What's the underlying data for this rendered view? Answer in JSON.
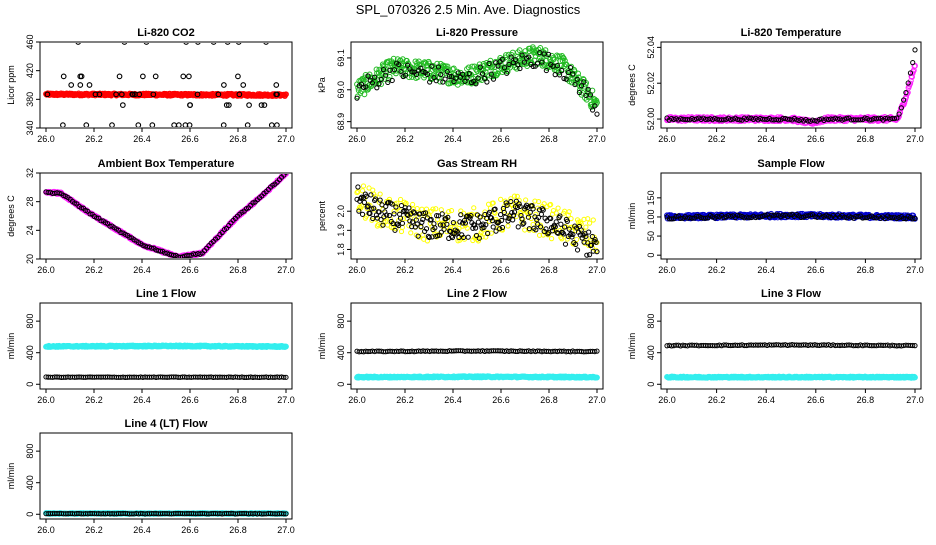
{
  "page_title": "SPL_070326  2.5 Min. Ave. Diagnostics",
  "colors": {
    "black": "#000000",
    "red": "#ff0000",
    "green": "#22bb22",
    "magenta": "#ff22ff",
    "yellow": "#ffff00",
    "blue": "#0000cc",
    "cyan": "#33eeee"
  },
  "chart_data": [
    {
      "id": "co2",
      "type": "scatter",
      "title": "Li-820 CO2",
      "ylabel": "Licor ppm",
      "xlim": [
        26.0,
        27.0
      ],
      "ylim": [
        340,
        460
      ],
      "xticks": [
        "26.0",
        "26.2",
        "26.4",
        "26.6",
        "26.8",
        "27.0"
      ],
      "yticks": [
        "340",
        "380",
        "420",
        "460"
      ],
      "series": [
        {
          "color": "red",
          "style": "band",
          "x": [
            26.0,
            27.0
          ],
          "y": [
            387,
            386
          ],
          "spread": 1.5
        },
        {
          "color": "black",
          "style": "sparse",
          "y_levels": [
            344,
            372,
            387,
            400,
            412,
            460
          ],
          "count": 60
        }
      ]
    },
    {
      "id": "pressure",
      "type": "scatter",
      "title": "Li-820 Pressure",
      "ylabel": "kPa",
      "xlim": [
        26.0,
        27.0
      ],
      "ylim": [
        68.88,
        69.15
      ],
      "xticks": [
        "26.0",
        "26.2",
        "26.4",
        "26.6",
        "26.8",
        "27.0"
      ],
      "yticks": [
        "68.9",
        "69.0",
        "69.1"
      ],
      "series": [
        {
          "color": "green",
          "style": "band",
          "x": [
            26.0,
            26.15,
            26.3,
            26.45,
            26.6,
            26.75,
            26.85,
            26.95,
            27.0
          ],
          "y": [
            69.0,
            69.07,
            69.06,
            69.04,
            69.08,
            69.11,
            69.08,
            69.0,
            68.95
          ],
          "spread": 0.03
        },
        {
          "color": "black",
          "style": "track",
          "x": [
            26.0,
            26.15,
            26.3,
            26.45,
            26.6,
            26.75,
            26.85,
            26.95,
            27.0
          ],
          "y": [
            69.0,
            69.06,
            69.05,
            69.03,
            69.07,
            69.1,
            69.07,
            69.0,
            68.94
          ],
          "spread": 0.03
        }
      ]
    },
    {
      "id": "temp",
      "type": "scatter",
      "title": "Li-820 Temperature",
      "ylabel": "degrees C",
      "xlim": [
        26.0,
        27.0
      ],
      "ylim": [
        51.995,
        52.043
      ],
      "xticks": [
        "26.0",
        "26.2",
        "26.4",
        "26.6",
        "26.8",
        "27.0"
      ],
      "yticks": [
        "52.00",
        "52.02",
        "52.04"
      ],
      "series": [
        {
          "color": "magenta",
          "style": "band",
          "x": [
            26.0,
            26.5,
            26.58,
            26.65,
            26.93,
            26.97,
            27.0
          ],
          "y": [
            52.0,
            52.0,
            51.998,
            52.0,
            52.0,
            52.015,
            52.03
          ],
          "spread": 0.0012
        },
        {
          "color": "black",
          "style": "track",
          "x": [
            26.0,
            26.5,
            26.58,
            26.65,
            26.93,
            26.97,
            27.0
          ],
          "y": [
            52.0,
            52.0,
            51.999,
            52.0,
            52.0,
            52.018,
            52.038
          ],
          "spread": 0.0006
        }
      ]
    },
    {
      "id": "ambient",
      "type": "scatter",
      "title": "Ambient Box Temperature",
      "ylabel": "degrees C",
      "xlim": [
        26.0,
        27.0
      ],
      "ylim": [
        20,
        32
      ],
      "xticks": [
        "26.0",
        "26.2",
        "26.4",
        "26.6",
        "26.8",
        "27.0"
      ],
      "yticks": [
        "20",
        "24",
        "28",
        "32"
      ],
      "series": [
        {
          "color": "magenta",
          "style": "band",
          "x": [
            26.0,
            26.06,
            26.2,
            26.4,
            26.55,
            26.65,
            26.8,
            26.9,
            27.0
          ],
          "y": [
            29.3,
            29.2,
            26.0,
            22.0,
            20.3,
            20.8,
            26.0,
            28.8,
            32.0
          ],
          "spread": 0.15
        },
        {
          "color": "black",
          "style": "track",
          "x": [
            26.0,
            26.06,
            26.2,
            26.4,
            26.55,
            26.65,
            26.8,
            26.9,
            27.0
          ],
          "y": [
            29.3,
            29.2,
            26.0,
            22.0,
            20.3,
            20.8,
            26.0,
            28.8,
            32.0
          ],
          "spread": 0.1
        }
      ]
    },
    {
      "id": "rh",
      "type": "scatter",
      "title": "Gas Stream RH",
      "ylabel": "percent",
      "xlim": [
        26.0,
        27.0
      ],
      "ylim": [
        1.75,
        2.2
      ],
      "xticks": [
        "26.0",
        "26.2",
        "26.4",
        "26.6",
        "26.8",
        "27.0"
      ],
      "yticks": [
        "1.8",
        "1.9",
        "2.0"
      ],
      "series": [
        {
          "color": "yellow",
          "style": "noisy",
          "x": [
            26.0,
            26.1,
            26.3,
            26.5,
            26.65,
            26.8,
            27.0
          ],
          "y": [
            2.08,
            2.0,
            1.93,
            1.93,
            2.0,
            1.95,
            1.86
          ],
          "spread": 0.09
        },
        {
          "color": "black",
          "style": "noisy",
          "x": [
            26.0,
            26.1,
            26.3,
            26.5,
            26.65,
            26.8,
            27.0
          ],
          "y": [
            2.06,
            1.99,
            1.92,
            1.92,
            1.99,
            1.94,
            1.81
          ],
          "spread": 0.07
        }
      ]
    },
    {
      "id": "sample",
      "type": "scatter",
      "title": "Sample Flow",
      "ylabel": "ml/min",
      "xlim": [
        26.0,
        27.0
      ],
      "ylim": [
        -10,
        215
      ],
      "xticks": [
        "26.0",
        "26.2",
        "26.4",
        "26.6",
        "26.8",
        "27.0"
      ],
      "yticks": [
        "0",
        "50",
        "100",
        "150"
      ],
      "series": [
        {
          "color": "blue",
          "style": "band",
          "x": [
            26.0,
            26.5,
            27.0
          ],
          "y": [
            100,
            104,
            100
          ],
          "spread": 5
        },
        {
          "color": "black",
          "style": "track",
          "x": [
            26.0,
            26.5,
            27.0
          ],
          "y": [
            98,
            103,
            98
          ],
          "spread": 4
        }
      ]
    },
    {
      "id": "line1",
      "type": "scatter",
      "title": "Line 1 Flow",
      "ylabel": "ml/min",
      "xlim": [
        26.0,
        27.0
      ],
      "ylim": [
        -60,
        1030
      ],
      "xticks": [
        "26.0",
        "26.2",
        "26.4",
        "26.6",
        "26.8",
        "27.0"
      ],
      "yticks": [
        "0",
        "400",
        "800"
      ],
      "series": [
        {
          "color": "cyan",
          "style": "band",
          "x": [
            26.0,
            26.5,
            27.0
          ],
          "y": [
            480,
            485,
            478
          ],
          "spread": 8
        },
        {
          "color": "black",
          "style": "track",
          "x": [
            26.0,
            27.0
          ],
          "y": [
            90,
            90
          ],
          "spread": 3
        }
      ]
    },
    {
      "id": "line2",
      "type": "scatter",
      "title": "Line 2 Flow",
      "ylabel": "ml/min",
      "xlim": [
        26.0,
        27.0
      ],
      "ylim": [
        -60,
        1030
      ],
      "xticks": [
        "26.0",
        "26.2",
        "26.4",
        "26.6",
        "26.8",
        "27.0"
      ],
      "yticks": [
        "0",
        "400",
        "800"
      ],
      "series": [
        {
          "color": "cyan",
          "style": "band",
          "x": [
            26.0,
            26.5,
            27.0
          ],
          "y": [
            90,
            95,
            90
          ],
          "spread": 8
        },
        {
          "color": "black",
          "style": "track",
          "x": [
            26.0,
            26.5,
            27.0
          ],
          "y": [
            415,
            422,
            415
          ],
          "spread": 5
        }
      ]
    },
    {
      "id": "line3",
      "type": "scatter",
      "title": "Line 3 Flow",
      "ylabel": "ml/min",
      "xlim": [
        26.0,
        27.0
      ],
      "ylim": [
        -60,
        1030
      ],
      "xticks": [
        "26.0",
        "26.2",
        "26.4",
        "26.6",
        "26.8",
        "27.0"
      ],
      "yticks": [
        "0",
        "400",
        "800"
      ],
      "series": [
        {
          "color": "cyan",
          "style": "band",
          "x": [
            26.0,
            27.0
          ],
          "y": [
            90,
            90
          ],
          "spread": 8
        },
        {
          "color": "black",
          "style": "track",
          "x": [
            26.0,
            26.5,
            27.0
          ],
          "y": [
            490,
            498,
            490
          ],
          "spread": 5
        }
      ]
    },
    {
      "id": "line4",
      "type": "scatter",
      "title": "Line 4 (LT) Flow",
      "ylabel": "ml/min",
      "xlim": [
        26.0,
        27.0
      ],
      "ylim": [
        -60,
        1030
      ],
      "xticks": [
        "26.0",
        "26.2",
        "26.4",
        "26.6",
        "26.8",
        "27.0"
      ],
      "yticks": [
        "0",
        "400",
        "800"
      ],
      "series": [
        {
          "color": "cyan",
          "style": "band",
          "x": [
            26.0,
            27.0
          ],
          "y": [
            10,
            10
          ],
          "spread": 6
        },
        {
          "color": "black",
          "style": "track",
          "x": [
            26.0,
            27.0
          ],
          "y": [
            8,
            8
          ],
          "spread": 3
        }
      ]
    }
  ]
}
